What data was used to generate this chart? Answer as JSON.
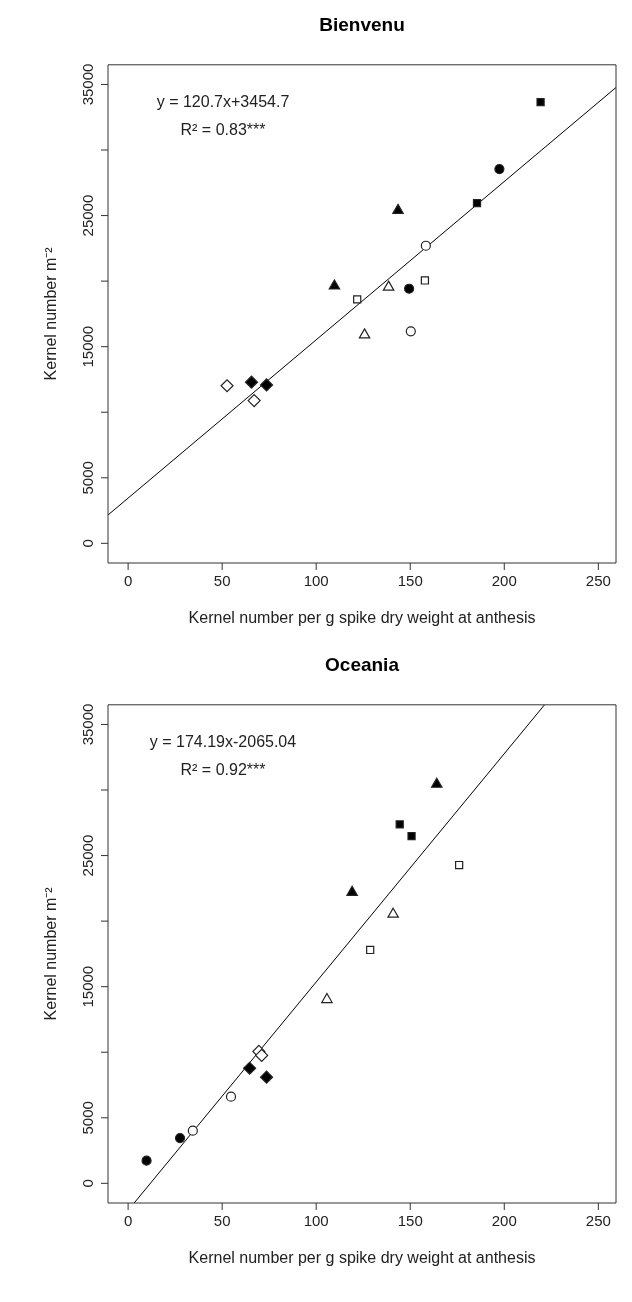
{
  "chart_data": [
    {
      "type": "scatter",
      "title": "Bienvenu",
      "xlabel": "Kernel number per g spike dry weight at anthesis",
      "ylabel": "Kernel number m⁻²",
      "annotations": [
        "y = 120.7x+3454.7",
        "R² = 0.83***"
      ],
      "xlim": [
        -10.7,
        259.4
      ],
      "ylim": [
        -1500,
        36500
      ],
      "xticks": [
        0,
        50,
        100,
        150,
        200,
        250
      ],
      "yticks": [
        0,
        5000,
        {
          "value": 10000,
          "label": null
        },
        15000,
        {
          "value": 20000,
          "label": null
        },
        25000,
        {
          "value": 30000,
          "label": null
        },
        35000
      ],
      "series": [
        {
          "marker": "square",
          "color": "#000000",
          "x": [
            219.3,
            185.5
          ],
          "values": [
            33650,
            25950
          ]
        },
        {
          "marker": "circle",
          "color": "#000000",
          "x": [
            197.4,
            149.4
          ],
          "values": [
            28550,
            19420
          ]
        },
        {
          "marker": "triangle",
          "color": "#000000",
          "x": [
            143.5,
            109.7
          ],
          "values": [
            25400,
            19630
          ]
        },
        {
          "marker": "circle",
          "color": "#ffffff",
          "x": [
            158.3,
            150.3
          ],
          "values": [
            22700,
            16170
          ]
        },
        {
          "marker": "square",
          "color": "#ffffff",
          "x": [
            121.8,
            157.8
          ],
          "values": [
            18610,
            20050
          ]
        },
        {
          "marker": "triangle",
          "color": "#ffffff",
          "x": [
            138.5,
            125.7
          ],
          "values": [
            19540,
            15900
          ]
        },
        {
          "marker": "diamond",
          "color": "#000000",
          "x": [
            65.6,
            73.6
          ],
          "values": [
            12290,
            12080
          ]
        },
        {
          "marker": "diamond",
          "color": "#ffffff",
          "x": [
            52.6,
            67.0
          ],
          "values": [
            12020,
            10890
          ]
        },
        {
          "type": "line",
          "marker": "none",
          "color": "#000000",
          "x": [
            -10.7,
            259.4
          ],
          "values": [
            2160,
            34770
          ]
        }
      ]
    },
    {
      "type": "scatter",
      "title": "Oceania",
      "xlabel": "Kernel number per g spike dry weight at anthesis",
      "ylabel": "Kernel number m⁻²",
      "annotations": [
        "y = 174.19x-2065.04",
        "R² = 0.92***"
      ],
      "xlim": [
        -10.7,
        259.4
      ],
      "ylim": [
        -1500,
        36500
      ],
      "xticks": [
        0,
        50,
        100,
        150,
        200,
        250
      ],
      "yticks": [
        0,
        5000,
        {
          "value": 10000,
          "label": null
        },
        15000,
        {
          "value": 20000,
          "label": null
        },
        25000,
        {
          "value": 30000,
          "label": null
        },
        35000
      ],
      "series": [
        {
          "marker": "circle",
          "color": "#000000",
          "x": [
            9.8,
            27.6
          ],
          "values": [
            1730,
            3450
          ]
        },
        {
          "marker": "circle",
          "color": "#ffffff",
          "x": [
            34.4,
            54.7
          ],
          "values": [
            4020,
            6610
          ]
        },
        {
          "marker": "diamond",
          "color": "#000000",
          "x": [
            64.6,
            73.6
          ],
          "values": [
            8780,
            8100
          ]
        },
        {
          "marker": "diamond",
          "color": "#ffffff",
          "x": [
            69.5,
            71.0
          ],
          "values": [
            10060,
            9760
          ]
        },
        {
          "marker": "triangle",
          "color": "#ffffff",
          "x": [
            105.7,
            140.9
          ],
          "values": [
            14020,
            20530
          ]
        },
        {
          "marker": "square",
          "color": "#ffffff",
          "x": [
            128.7,
            176.0
          ],
          "values": [
            17800,
            24280
          ]
        },
        {
          "marker": "triangle",
          "color": "#000000",
          "x": [
            119.1,
            164.1
          ],
          "values": [
            22200,
            30440
          ]
        },
        {
          "marker": "square",
          "color": "#000000",
          "x": [
            144.4,
            150.7
          ],
          "values": [
            27380,
            26490
          ]
        },
        {
          "type": "line",
          "marker": "none",
          "color": "#000000",
          "x": [
            3.2,
            221.4
          ],
          "values": [
            -1500,
            36500
          ]
        }
      ]
    }
  ]
}
